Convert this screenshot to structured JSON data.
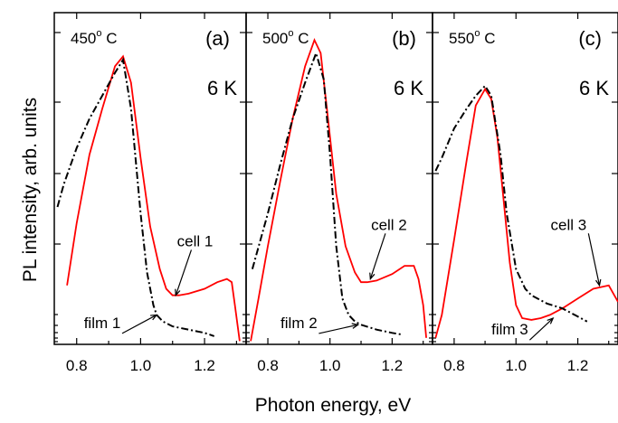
{
  "chart_data": {
    "type": "line",
    "ylabel": "PL intensity, arb. units",
    "xlabel": "Photon energy, eV",
    "yscale": "log",
    "y_tick_labels": "none",
    "panels": [
      {
        "label": "(a)",
        "temp": "450",
        "temp_unit": "o C",
        "meas_temp": "6 K",
        "xlim": [
          0.73,
          1.33
        ],
        "xticks": [
          "0.8",
          "1.0",
          "1.2"
        ],
        "ylim": [
          0,
          100
        ],
        "series": [
          {
            "name": "cell 1",
            "color": "#ff0000",
            "style": "solid",
            "x": [
              0.77,
              0.8,
              0.84,
              0.88,
              0.92,
              0.945,
              0.97,
              1.0,
              1.03,
              1.06,
              1.08,
              1.1,
              1.12,
              1.15,
              1.2,
              1.24,
              1.27,
              1.285,
              1.295,
              1.31
            ],
            "y": [
              18,
              37,
              58,
              72,
              85,
              88,
              80,
              57,
              36,
              23,
              17,
              15,
              15,
              15.5,
              17,
              19,
              20,
              19,
              12,
              1
            ]
          },
          {
            "name": "film 1",
            "color": "#000000",
            "style": "dashdot",
            "x": [
              0.74,
              0.76,
              0.8,
              0.84,
              0.88,
              0.92,
              0.945,
              0.97,
              1.0,
              1.02,
              1.04,
              1.05,
              1.07,
              1.1,
              1.15,
              1.2,
              1.23
            ],
            "y": [
              42,
              49,
              60,
              69,
              76,
              83,
              87,
              72,
              40,
              22,
              12,
              9,
              7,
              5.5,
              4.5,
              3.5,
              2.5
            ]
          }
        ],
        "annotations": [
          {
            "text": "cell 1",
            "x": 1.17,
            "y": 30,
            "ax": 1.11,
            "ay": 15
          },
          {
            "text": "film 1",
            "x": 0.88,
            "y": 5,
            "ax": 1.05,
            "ay": 9
          }
        ]
      },
      {
        "label": "(b)",
        "temp": "500",
        "temp_unit": "o C",
        "meas_temp": "6 K",
        "xlim": [
          0.73,
          1.33
        ],
        "xticks": [
          "0.8",
          "1.0",
          "1.2"
        ],
        "ylim": [
          0,
          100
        ],
        "series": [
          {
            "name": "cell 2",
            "color": "#ff0000",
            "style": "solid",
            "x": [
              0.745,
              0.77,
              0.8,
              0.84,
              0.88,
              0.92,
              0.95,
              0.97,
              0.99,
              1.02,
              1.05,
              1.08,
              1.1,
              1.12,
              1.15,
              1.2,
              1.24,
              1.27,
              1.285,
              1.3,
              1.31
            ],
            "y": [
              1,
              14,
              30,
              50,
              69,
              85,
              93,
              89,
              72,
              46,
              30,
              22,
              19,
              19,
              19.5,
              21.5,
              24,
              24,
              20,
              12,
              2
            ]
          },
          {
            "name": "film 2",
            "color": "#000000",
            "style": "dashdot",
            "x": [
              0.75,
              0.8,
              0.84,
              0.88,
              0.92,
              0.955,
              0.98,
              1.0,
              1.02,
              1.04,
              1.06,
              1.08,
              1.1,
              1.15,
              1.2,
              1.23
            ],
            "y": [
              23,
              40,
              55,
              69,
              80,
              89,
              81,
              58,
              30,
              14,
              9,
              7,
              6,
              4.5,
              3.5,
              3
            ]
          }
        ],
        "annotations": [
          {
            "text": "cell 2",
            "x": 1.19,
            "y": 35,
            "ax": 1.13,
            "ay": 20
          },
          {
            "text": "film 2",
            "x": 0.9,
            "y": 5,
            "ax": 1.09,
            "ay": 6
          }
        ]
      },
      {
        "label": "(c)",
        "temp": "550",
        "temp_unit": "o C",
        "meas_temp": "6 K",
        "xlim": [
          0.73,
          1.33
        ],
        "xticks": [
          "0.8",
          "1.0",
          "1.2"
        ],
        "ylim": [
          0,
          100
        ],
        "series": [
          {
            "name": "cell 3",
            "color": "#ff0000",
            "style": "solid",
            "x": [
              0.74,
              0.76,
              0.8,
              0.84,
              0.87,
              0.9,
              0.92,
              0.94,
              0.96,
              0.98,
              1.0,
              1.02,
              1.05,
              1.08,
              1.11,
              1.15,
              1.2,
              1.25,
              1.3,
              1.33
            ],
            "y": [
              2,
              9,
              32,
              56,
              73,
              78,
              75,
              63,
              44,
              25,
              12,
              8,
              7.5,
              8,
              9,
              11,
              14,
              17,
              18,
              13
            ]
          },
          {
            "name": "film 3",
            "color": "#000000",
            "style": "dashdot",
            "x": [
              0.74,
              0.76,
              0.8,
              0.84,
              0.87,
              0.9,
              0.92,
              0.95,
              0.97,
              1.0,
              1.03,
              1.05,
              1.1,
              1.15,
              1.2,
              1.23
            ],
            "y": [
              53,
              57,
              66,
              72,
              76,
              79,
              76,
              58,
              40,
              23,
              17,
              15,
              12.5,
              11,
              8.5,
              7
            ]
          }
        ],
        "annotations": [
          {
            "text": "cell 3",
            "x": 1.17,
            "y": 35,
            "ax": 1.27,
            "ay": 18
          },
          {
            "text": "film 3",
            "x": 0.98,
            "y": 3,
            "ax": 1.12,
            "ay": 8
          }
        ]
      }
    ]
  }
}
